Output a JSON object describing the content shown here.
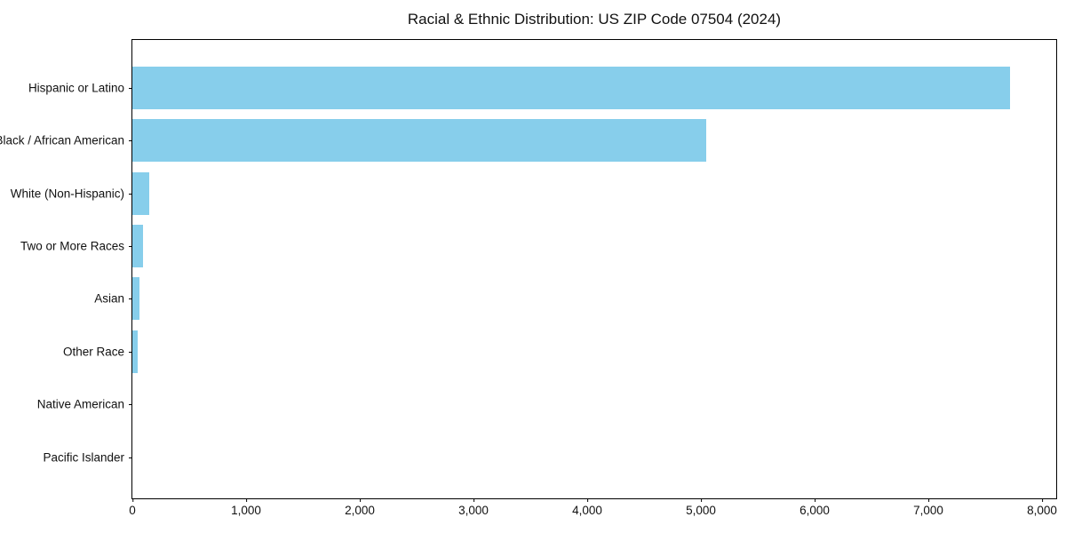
{
  "chart_data": {
    "type": "bar",
    "orientation": "horizontal",
    "title": "Racial & Ethnic Distribution: US ZIP Code 07504 (2024)",
    "categories": [
      "Hispanic or Latino",
      "Black / African American",
      "White (Non-Hispanic)",
      "Two or More Races",
      "Asian",
      "Other Race",
      "Native American",
      "Pacific Islander"
    ],
    "values": [
      7720,
      5050,
      150,
      90,
      60,
      50,
      0,
      0
    ],
    "xlabel": "",
    "ylabel": "",
    "xlim": [
      0,
      8000
    ],
    "x_ticks": [
      0,
      1000,
      2000,
      3000,
      4000,
      5000,
      6000,
      7000,
      8000
    ],
    "x_tick_labels": [
      "0",
      "1,000",
      "2,000",
      "3,000",
      "4,000",
      "5,000",
      "6,000",
      "7,000",
      "8,000"
    ],
    "bar_color": "#87CEEB",
    "axis_color": "#000000",
    "grid": false,
    "legend": null
  }
}
